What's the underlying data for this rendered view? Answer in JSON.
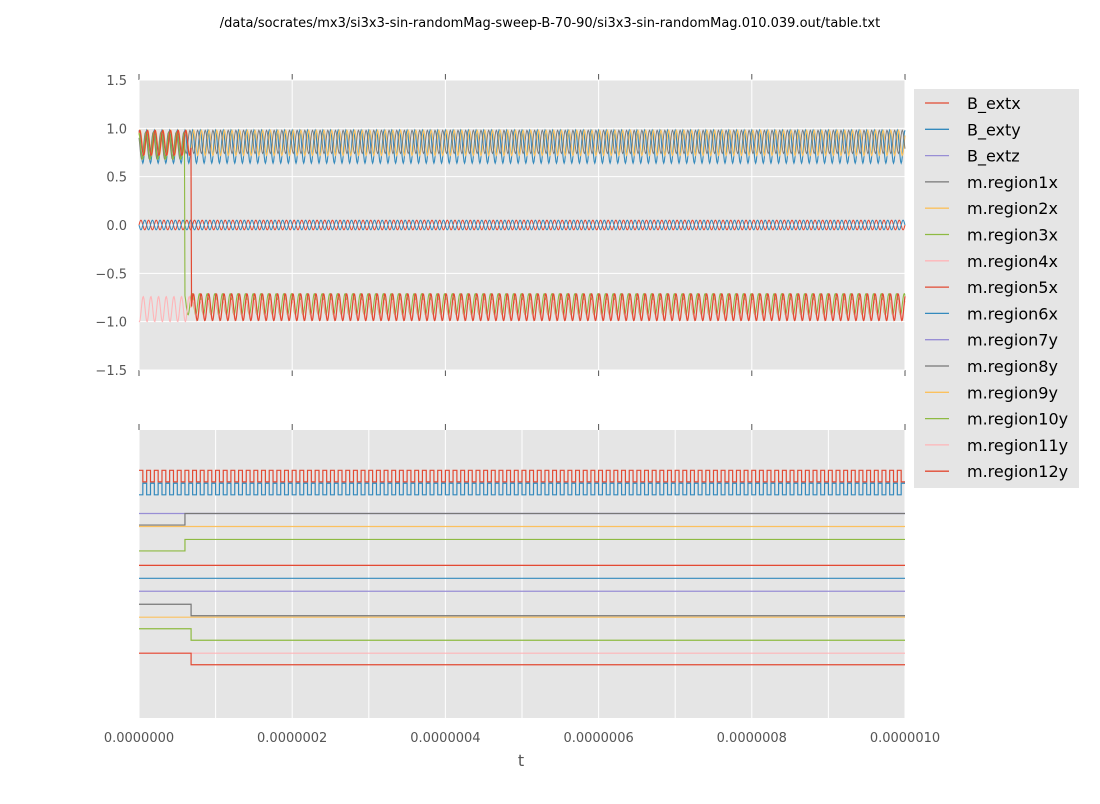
{
  "chart_data": {
    "type": "line",
    "title": "/data/socrates/mx3/si3x3-sin-randomMag-sweep-B-70-90/si3x3-sin-randomMag.010.039.out/table.txt",
    "xlabel": "t",
    "x_range": [
      0,
      1e-06
    ],
    "x_ticks": [
      "0.0000000",
      "0.0000002",
      "0.0000004",
      "0.0000006",
      "0.0000008",
      "0.0000010"
    ],
    "grid": true,
    "legend_position": "right",
    "n_cycles": 100,
    "panels": [
      {
        "name": "top",
        "ylim": [
          -1.5,
          1.5
        ],
        "y_ticks": [
          "1.5",
          "1.0",
          "0.5",
          "0.0",
          "−0.5",
          "−1.0",
          "−1.5"
        ]
      },
      {
        "name": "bottom",
        "ylim": [
          0,
          1
        ],
        "y_ticks": []
      }
    ],
    "series": [
      {
        "name": "B_extx",
        "color": "#e24a33",
        "kind": "square",
        "level": 0.84,
        "amp": 0.02,
        "phase": 0
      },
      {
        "name": "B_exty",
        "color": "#348abd",
        "kind": "square",
        "level": 0.795,
        "amp": 0.02,
        "phase": 0.5
      },
      {
        "name": "B_extz",
        "color": "#988ed5",
        "kind": "flat",
        "y": 0.71
      },
      {
        "name": "m.region1x",
        "color": "#777777",
        "kind": "step",
        "y0": 0.67,
        "y1": 0.71,
        "t": 6e-08
      },
      {
        "name": "m.region2x",
        "color": "#fbc15e",
        "kind": "flat",
        "y": 0.665
      },
      {
        "name": "m.region3x",
        "color": "#8eba42",
        "kind": "step",
        "y0": 0.58,
        "y1": 0.62,
        "t": 6e-08
      },
      {
        "name": "m.region4x",
        "color": "#ffb5b8",
        "kind": "flat",
        "y": 0.53
      },
      {
        "name": "m.region5x",
        "color": "#e24a33",
        "kind": "flat",
        "y": 0.53
      },
      {
        "name": "m.region6x",
        "color": "#348abd",
        "kind": "flat",
        "y": 0.485
      },
      {
        "name": "m.region7y",
        "color": "#988ed5",
        "kind": "flat",
        "y": 0.44
      },
      {
        "name": "m.region8y",
        "color": "#777777",
        "kind": "step",
        "y0": 0.395,
        "y1": 0.355,
        "t": 6.8e-08
      },
      {
        "name": "m.region9y",
        "color": "#fbc15e",
        "kind": "flat",
        "y": 0.35
      },
      {
        "name": "m.region10y",
        "color": "#8eba42",
        "kind": "step",
        "y0": 0.31,
        "y1": 0.27,
        "t": 6.8e-08
      },
      {
        "name": "m.region11y",
        "color": "#ffb5b8",
        "kind": "flat",
        "y": 0.225
      },
      {
        "name": "m.region12y",
        "color": "#e24a33",
        "kind": "step",
        "y0": 0.225,
        "y1": 0.185,
        "t": 6.8e-08
      }
    ]
  }
}
